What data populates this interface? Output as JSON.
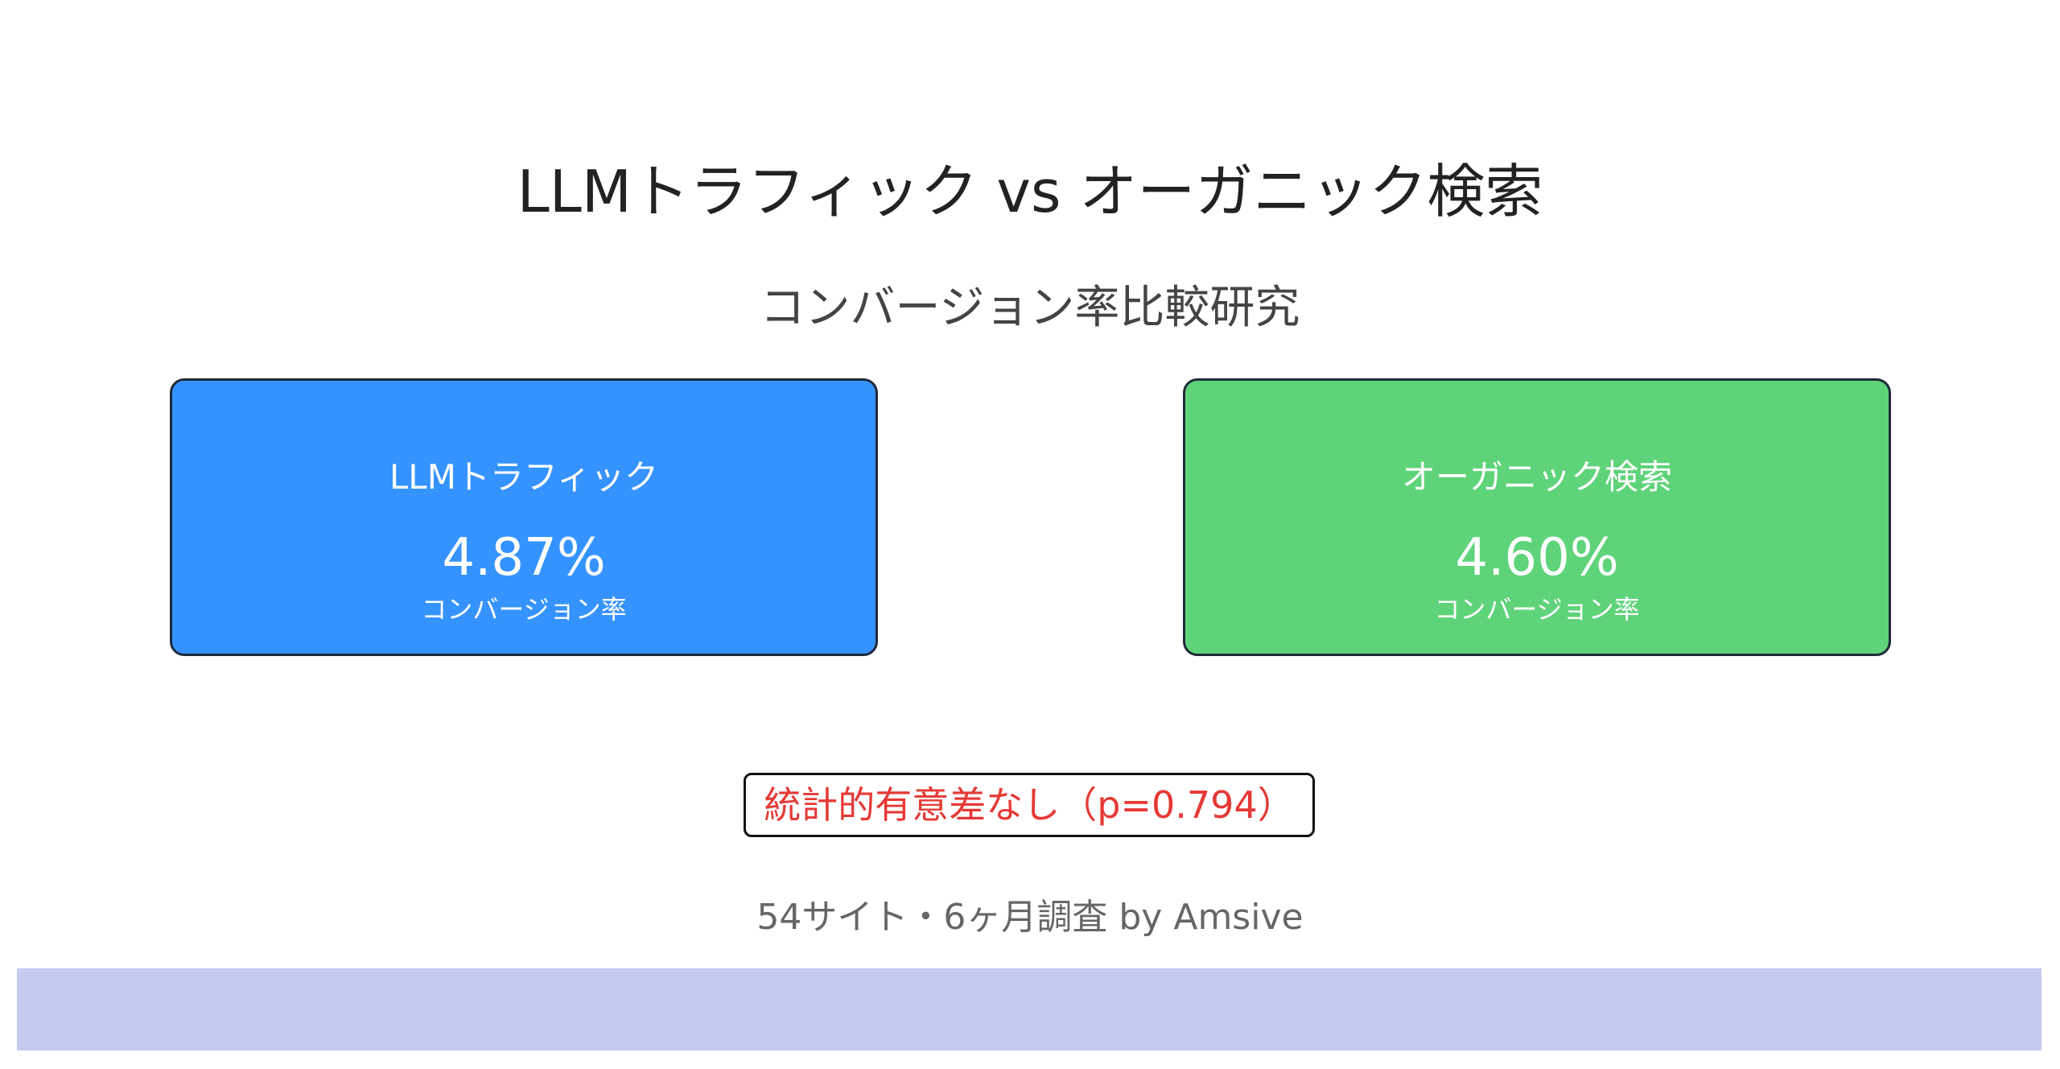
{
  "title": "LLMトラフィック vs オーガニック検索",
  "subtitle": "コンバージョン率比較研究",
  "cards": [
    {
      "label": "LLMトラフィック",
      "value": "4.87%",
      "caption": "コンバージョン率",
      "color": "#3593ff"
    },
    {
      "label": "オーガニック検索",
      "value": "4.60%",
      "caption": "コンバージョン率",
      "color": "#5fd37a"
    }
  ],
  "significance": {
    "text": "統計的有意差なし（p=0.794）",
    "color": "#e53935"
  },
  "footer": "54サイト・6ヶ月調査 by Amsive",
  "band_color": "#c5cbee"
}
